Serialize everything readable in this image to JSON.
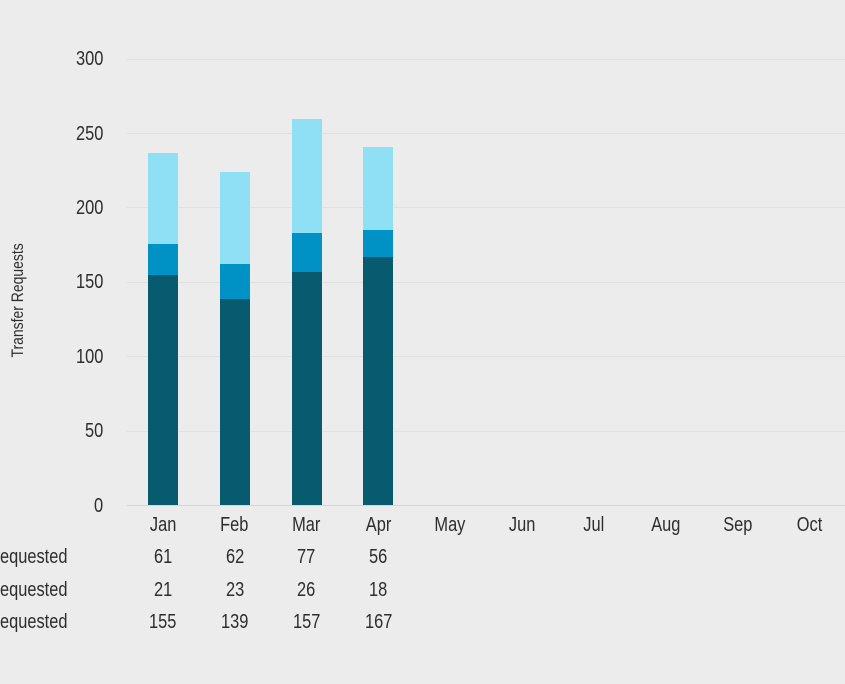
{
  "colors": {
    "background": "#ececec",
    "gridline": "#e0e0e0",
    "axis_line": "#d6d6d6",
    "text": "#2d2d2d",
    "series_light_blue": "#8fdff5",
    "series_medium_blue": "#0092c4",
    "series_dark_teal": "#085a6e"
  },
  "chart_data": {
    "type": "bar",
    "stacked": true,
    "title": "",
    "ylabel": "Transfer Requests",
    "xlabel": "",
    "ylim": [
      0,
      300
    ],
    "yticks": [
      0,
      50,
      100,
      150,
      200,
      250,
      300
    ],
    "grid": true,
    "legend_position": "none",
    "categories": [
      "Jan",
      "Feb",
      "Mar",
      "Apr",
      "May",
      "Jun",
      "Jul",
      "Aug",
      "Sep",
      "Oct"
    ],
    "series": [
      {
        "label": "equested",
        "color": "#8fdff5",
        "stack_position": "top",
        "values": [
          61,
          62,
          77,
          56,
          null,
          null,
          null,
          null,
          null,
          null
        ]
      },
      {
        "label": "equested",
        "color": "#0092c4",
        "stack_position": "middle",
        "values": [
          21,
          23,
          26,
          18,
          null,
          null,
          null,
          null,
          null,
          null
        ]
      },
      {
        "label": "equested",
        "color": "#085a6e",
        "stack_position": "bottom",
        "values": [
          155,
          139,
          157,
          167,
          null,
          null,
          null,
          null,
          null,
          null
        ]
      }
    ],
    "stack_totals": [
      237,
      224,
      260,
      241
    ],
    "value_table_row_labels_clipped": true
  }
}
